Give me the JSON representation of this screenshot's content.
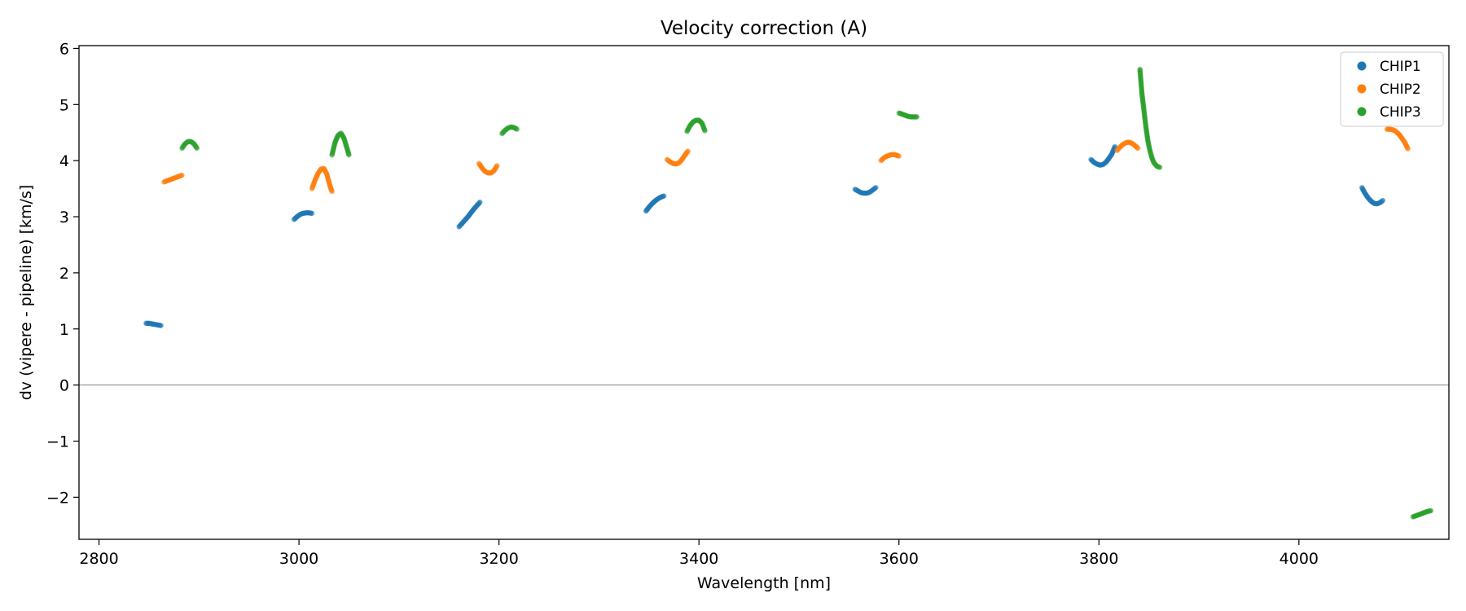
{
  "chart_data": {
    "type": "scatter",
    "title": "Velocity correction (A)",
    "xlabel": "Wavelength [nm]",
    "ylabel": "dv (vipere - pipeline) [km/s]",
    "xlim": [
      2780,
      4150
    ],
    "ylim": [
      -2.75,
      6.05
    ],
    "xticks": [
      2800,
      3000,
      3200,
      3400,
      3600,
      3800,
      4000
    ],
    "xtick_labels": [
      "2800",
      "3000",
      "3200",
      "3400",
      "3600",
      "3800",
      "4000"
    ],
    "yticks": [
      -2,
      -1,
      0,
      1,
      2,
      3,
      4,
      5,
      6
    ],
    "ytick_labels": [
      "−2",
      "−1",
      "0",
      "1",
      "2",
      "3",
      "4",
      "5",
      "6"
    ],
    "hline": 0,
    "legend_position": "top-right",
    "series": [
      {
        "name": "CHIP1",
        "color": "#1f77b4",
        "segments": [
          [
            [
              2847,
              1.1
            ],
            [
              2850,
              1.1
            ],
            [
              2853,
              1.09
            ],
            [
              2856,
              1.08
            ],
            [
              2859,
              1.07
            ],
            [
              2862,
              1.06
            ]
          ],
          [
            [
              2995,
              2.95
            ],
            [
              2998,
              3.0
            ],
            [
              3001,
              3.04
            ],
            [
              3004,
              3.06
            ],
            [
              3007,
              3.07
            ],
            [
              3010,
              3.07
            ],
            [
              3013,
              3.06
            ]
          ],
          [
            [
              3160,
              2.82
            ],
            [
              3163,
              2.88
            ],
            [
              3166,
              2.94
            ],
            [
              3169,
              3.0
            ],
            [
              3172,
              3.07
            ],
            [
              3175,
              3.14
            ],
            [
              3178,
              3.2
            ],
            [
              3181,
              3.26
            ]
          ],
          [
            [
              3347,
              3.1
            ],
            [
              3350,
              3.17
            ],
            [
              3353,
              3.23
            ],
            [
              3356,
              3.28
            ],
            [
              3359,
              3.32
            ],
            [
              3362,
              3.35
            ],
            [
              3365,
              3.37
            ]
          ],
          [
            [
              3556,
              3.49
            ],
            [
              3559,
              3.46
            ],
            [
              3562,
              3.43
            ],
            [
              3565,
              3.42
            ],
            [
              3568,
              3.42
            ],
            [
              3571,
              3.44
            ],
            [
              3574,
              3.48
            ],
            [
              3577,
              3.52
            ]
          ],
          [
            [
              3792,
              4.02
            ],
            [
              3795,
              3.97
            ],
            [
              3798,
              3.94
            ],
            [
              3801,
              3.92
            ],
            [
              3804,
              3.93
            ],
            [
              3807,
              3.97
            ],
            [
              3810,
              4.04
            ],
            [
              3813,
              4.12
            ],
            [
              3816,
              4.25
            ]
          ],
          [
            [
              4063,
              3.52
            ],
            [
              4066,
              3.42
            ],
            [
              4069,
              3.34
            ],
            [
              4072,
              3.28
            ],
            [
              4075,
              3.24
            ],
            [
              4078,
              3.23
            ],
            [
              4081,
              3.25
            ],
            [
              4084,
              3.29
            ]
          ]
        ]
      },
      {
        "name": "CHIP2",
        "color": "#ff7f0e",
        "segments": [
          [
            [
              2865,
              3.62
            ],
            [
              2868,
              3.64
            ],
            [
              2871,
              3.66
            ],
            [
              2874,
              3.68
            ],
            [
              2877,
              3.7
            ],
            [
              2880,
              3.72
            ],
            [
              2883,
              3.74
            ]
          ],
          [
            [
              3013,
              3.5
            ],
            [
              3016,
              3.65
            ],
            [
              3019,
              3.77
            ],
            [
              3022,
              3.85
            ],
            [
              3025,
              3.86
            ],
            [
              3028,
              3.75
            ],
            [
              3031,
              3.55
            ],
            [
              3033,
              3.45
            ]
          ],
          [
            [
              3180,
              3.95
            ],
            [
              3183,
              3.87
            ],
            [
              3186,
              3.81
            ],
            [
              3189,
              3.78
            ],
            [
              3192,
              3.78
            ],
            [
              3195,
              3.82
            ],
            [
              3198,
              3.91
            ]
          ],
          [
            [
              3368,
              4.02
            ],
            [
              3371,
              3.98
            ],
            [
              3374,
              3.95
            ],
            [
              3377,
              3.94
            ],
            [
              3380,
              3.96
            ],
            [
              3383,
              4.02
            ],
            [
              3386,
              4.1
            ],
            [
              3389,
              4.17
            ]
          ],
          [
            [
              3582,
              4.0
            ],
            [
              3585,
              4.05
            ],
            [
              3588,
              4.08
            ],
            [
              3591,
              4.1
            ],
            [
              3594,
              4.11
            ],
            [
              3597,
              4.1
            ],
            [
              3600,
              4.08
            ]
          ],
          [
            [
              3818,
              4.18
            ],
            [
              3821,
              4.24
            ],
            [
              3824,
              4.29
            ],
            [
              3827,
              4.32
            ],
            [
              3830,
              4.33
            ],
            [
              3833,
              4.31
            ],
            [
              3836,
              4.27
            ],
            [
              3839,
              4.22
            ]
          ],
          [
            [
              4088,
              4.56
            ],
            [
              4091,
              4.56
            ],
            [
              4094,
              4.55
            ],
            [
              4097,
              4.52
            ],
            [
              4100,
              4.47
            ],
            [
              4103,
              4.4
            ],
            [
              4106,
              4.32
            ],
            [
              4109,
              4.21
            ]
          ]
        ]
      },
      {
        "name": "CHIP3",
        "color": "#2ca02c",
        "segments": [
          [
            [
              2883,
              4.22
            ],
            [
              2886,
              4.3
            ],
            [
              2889,
              4.34
            ],
            [
              2892,
              4.34
            ],
            [
              2895,
              4.3
            ],
            [
              2898,
              4.22
            ]
          ],
          [
            [
              3033,
              4.1
            ],
            [
              3036,
              4.32
            ],
            [
              3039,
              4.45
            ],
            [
              3042,
              4.49
            ],
            [
              3045,
              4.4
            ],
            [
              3048,
              4.22
            ],
            [
              3050,
              4.1
            ]
          ],
          [
            [
              3203,
              4.48
            ],
            [
              3206,
              4.54
            ],
            [
              3209,
              4.58
            ],
            [
              3212,
              4.6
            ],
            [
              3215,
              4.59
            ],
            [
              3218,
              4.56
            ]
          ],
          [
            [
              3388,
              4.52
            ],
            [
              3391,
              4.62
            ],
            [
              3394,
              4.69
            ],
            [
              3397,
              4.72
            ],
            [
              3400,
              4.72
            ],
            [
              3403,
              4.67
            ],
            [
              3406,
              4.53
            ]
          ],
          [
            [
              3600,
              4.85
            ],
            [
              3603,
              4.83
            ],
            [
              3606,
              4.81
            ],
            [
              3609,
              4.79
            ],
            [
              3612,
              4.78
            ],
            [
              3615,
              4.78
            ],
            [
              3618,
              4.78
            ]
          ],
          [
            [
              3841,
              5.63
            ],
            [
              3843,
              5.2
            ],
            [
              3845,
              4.9
            ],
            [
              3847,
              4.6
            ],
            [
              3849,
              4.35
            ],
            [
              3851,
              4.18
            ],
            [
              3853,
              4.05
            ],
            [
              3855,
              3.96
            ],
            [
              3858,
              3.9
            ],
            [
              3861,
              3.88
            ]
          ],
          [
            [
              4114,
              -2.35
            ],
            [
              4117,
              -2.33
            ],
            [
              4120,
              -2.31
            ],
            [
              4123,
              -2.29
            ],
            [
              4126,
              -2.27
            ],
            [
              4129,
              -2.25
            ],
            [
              4132,
              -2.24
            ]
          ]
        ]
      }
    ]
  }
}
